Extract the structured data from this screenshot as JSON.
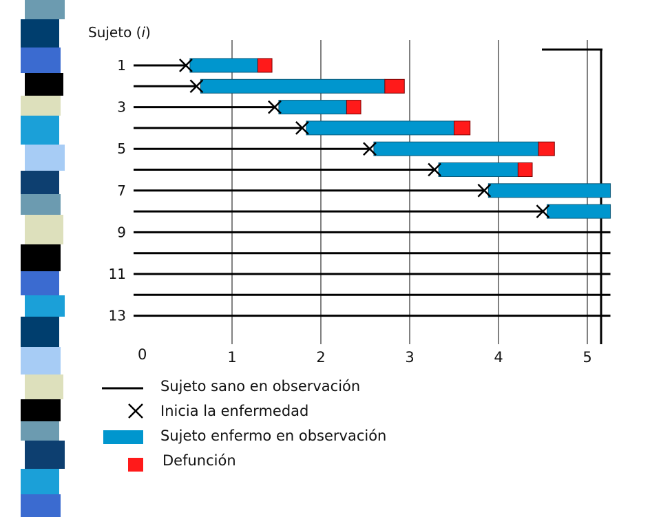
{
  "title": "",
  "ylabel": "Sujeto (i)",
  "xlabel": "",
  "origin_label": "0",
  "colors": {
    "healthy_line": "#000000",
    "sick_bar": "#0096CE",
    "death_marker": "#FF1A1A",
    "grid": "#000000",
    "stripe_palette": [
      "#6C9BB0",
      "#003E6E",
      "#3B6BD0",
      "#000000",
      "#DDE0BC",
      "#1BA0D8",
      "#A7CCF5",
      "#0D3F70"
    ]
  },
  "chart_data": {
    "type": "timeline",
    "x_ticks": [
      1,
      2,
      3,
      4,
      5
    ],
    "xlim": [
      0,
      5.2
    ],
    "y_tick_labels": [
      "1",
      "3",
      "5",
      "7",
      "9",
      "11",
      "13"
    ],
    "subjects": [
      {
        "subject": 1,
        "start": 0,
        "onset": 0.48,
        "sick_end": 1.29,
        "death": true,
        "death_end": 1.45
      },
      {
        "subject": 2,
        "start": 0,
        "onset": 0.6,
        "sick_end": 2.72,
        "death": true,
        "death_end": 2.94
      },
      {
        "subject": 3,
        "start": 0,
        "onset": 1.48,
        "sick_end": 2.29,
        "death": true,
        "death_end": 2.45
      },
      {
        "subject": 4,
        "start": 0,
        "onset": 1.79,
        "sick_end": 3.5,
        "death": true,
        "death_end": 3.68
      },
      {
        "subject": 5,
        "start": 0,
        "onset": 2.55,
        "sick_end": 4.45,
        "death": true,
        "death_end": 4.63
      },
      {
        "subject": 6,
        "start": 0,
        "onset": 3.28,
        "sick_end": 4.22,
        "death": true,
        "death_end": 4.38
      },
      {
        "subject": 7,
        "start": 0,
        "onset": 3.84,
        "sick_end": 5.26,
        "death": false
      },
      {
        "subject": 8,
        "start": 0,
        "onset": 4.5,
        "sick_end": 5.26,
        "death": false
      },
      {
        "subject": 9,
        "start": 0,
        "end": 5.26
      },
      {
        "subject": 10,
        "start": 0,
        "end": 5.26
      },
      {
        "subject": 11,
        "start": 0,
        "end": 5.26
      },
      {
        "subject": 12,
        "start": 0,
        "end": 5.26
      },
      {
        "subject": 13,
        "start": 0,
        "end": 5.26
      }
    ]
  },
  "legend": [
    {
      "symbol": "line",
      "label": "Sujeto sano en observación"
    },
    {
      "symbol": "cross",
      "label": "Inicia la enfermedad"
    },
    {
      "symbol": "bar",
      "label": "Sujeto enfermo en observación"
    },
    {
      "symbol": "square",
      "label": "Defunción"
    }
  ]
}
